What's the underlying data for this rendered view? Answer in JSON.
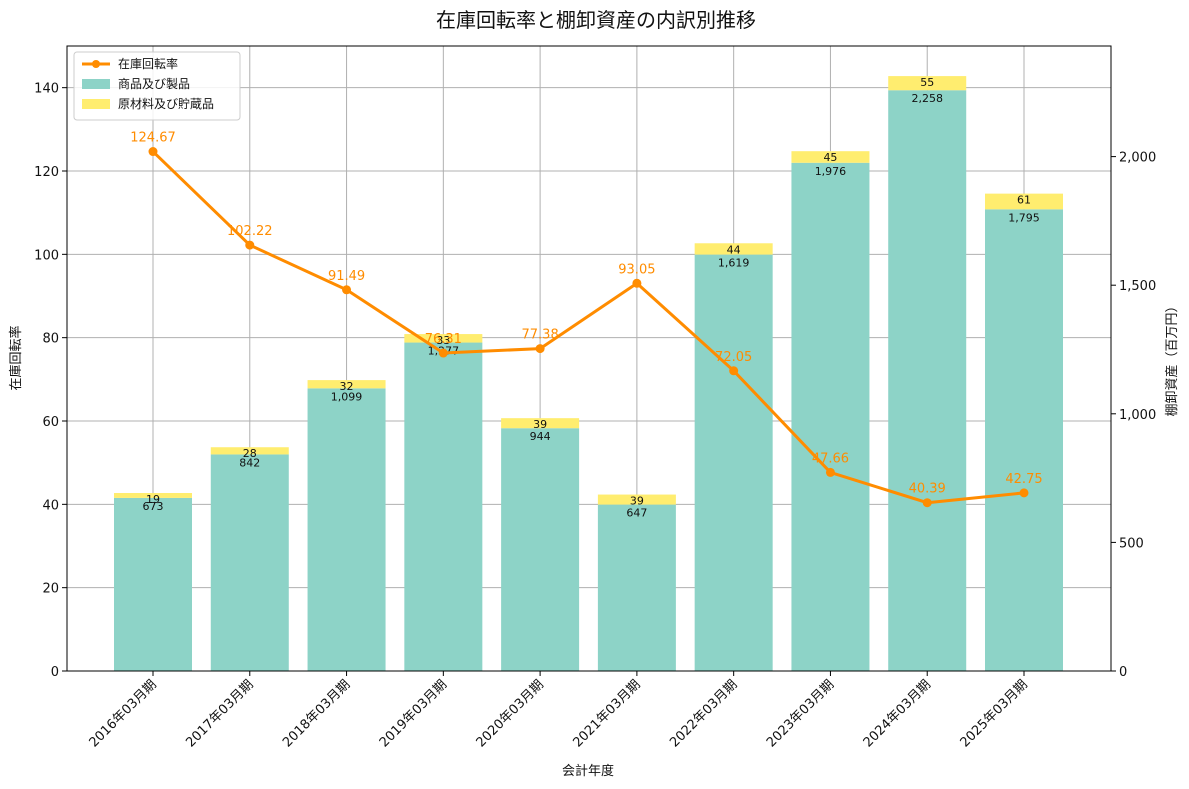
{
  "chart_data": {
    "type": "bar+line",
    "title": "在庫回転率と棚卸資産の内訳別推移",
    "xlabel": "会計年度",
    "ylabel_left": "在庫回転率",
    "ylabel_right": "棚卸資産（百万円）",
    "categories": [
      "2016年03月期",
      "2017年03月期",
      "2018年03月期",
      "2019年03月期",
      "2020年03月期",
      "2021年03月期",
      "2022年03月期",
      "2023年03月期",
      "2024年03月期",
      "2025年03月期"
    ],
    "ylim_left": [
      0,
      150
    ],
    "ylim_right": [
      0,
      2430
    ],
    "yticks_left": [
      0,
      20,
      40,
      60,
      80,
      100,
      120,
      140
    ],
    "yticks_right": [
      0,
      500,
      1000,
      1500,
      2000
    ],
    "yticks_right_labels": [
      "0",
      "500",
      "1,000",
      "1,500",
      "2,000"
    ],
    "grid": true,
    "legend_position": "top-left",
    "series": [
      {
        "name": "在庫回転率",
        "kind": "line",
        "axis": "left",
        "color": "#ff8c00",
        "values": [
          124.67,
          102.22,
          91.49,
          76.31,
          77.38,
          93.05,
          72.05,
          47.66,
          40.39,
          42.75
        ],
        "labels": [
          "124.67",
          "102.22",
          "91.49",
          "76.31",
          "77.38",
          "93.05",
          "72.05",
          "47.66",
          "40.39",
          "42.75"
        ]
      },
      {
        "name": "商品及び製品",
        "kind": "bar",
        "axis": "right",
        "color": "#8dd3c7",
        "values": [
          673,
          842,
          1099,
          1277,
          944,
          647,
          1619,
          1976,
          2258,
          1795
        ],
        "labels": [
          "673",
          "842",
          "1,099",
          "1,277",
          "944",
          "647",
          "1,619",
          "1,976",
          "2,258",
          "1,795"
        ]
      },
      {
        "name": "原材料及び貯蔵品",
        "kind": "bar",
        "axis": "right",
        "color": "#ffed6f",
        "values": [
          19,
          28,
          32,
          33,
          39,
          39,
          44,
          45,
          55,
          61
        ],
        "labels": [
          "19",
          "28",
          "32",
          "33",
          "39",
          "39",
          "44",
          "45",
          "55",
          "61"
        ]
      }
    ]
  }
}
